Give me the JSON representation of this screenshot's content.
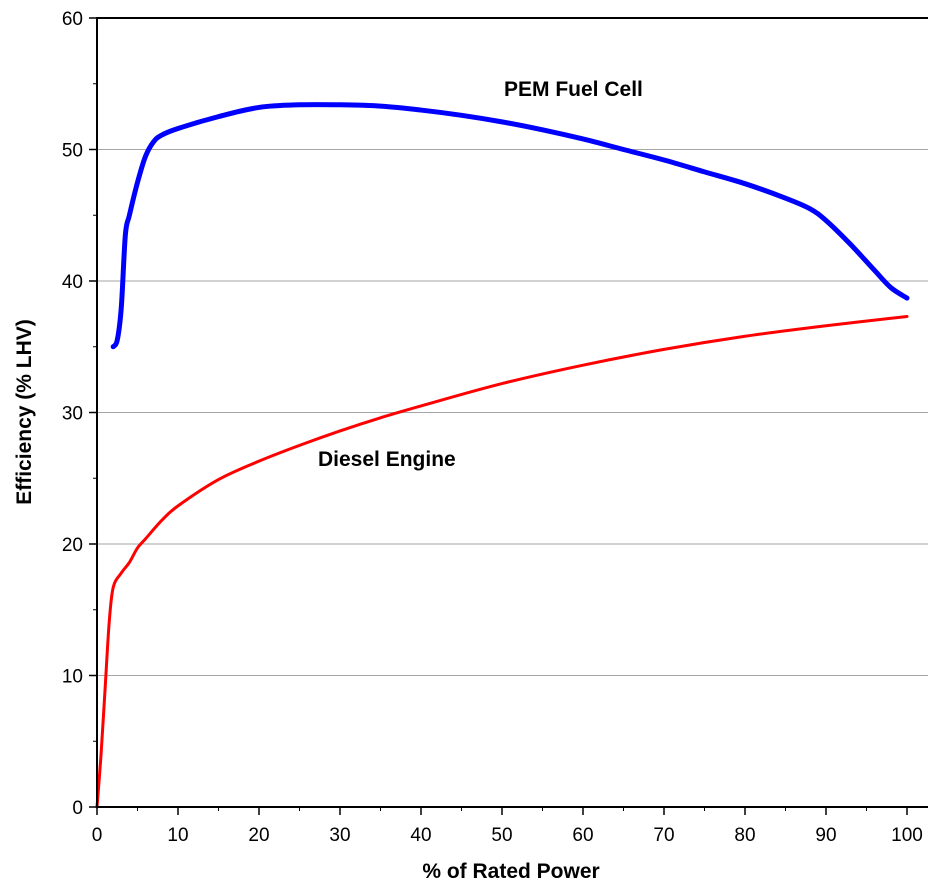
{
  "chart_data": {
    "type": "line",
    "xlabel": "% of Rated Power",
    "ylabel": "Efficiency  (% LHV)",
    "xlim": [
      0,
      100
    ],
    "ylim": [
      0,
      60
    ],
    "x_ticks": [
      0,
      10,
      20,
      30,
      40,
      50,
      60,
      70,
      80,
      90,
      100
    ],
    "y_ticks": [
      0,
      10,
      20,
      30,
      40,
      50,
      60
    ],
    "grid": "horizontal",
    "series": [
      {
        "name": "PEM Fuel Cell",
        "color": "#0000ff",
        "points": [
          [
            2,
            35
          ],
          [
            2.5,
            35.5
          ],
          [
            3,
            38
          ],
          [
            3.5,
            43.5
          ],
          [
            4,
            45
          ],
          [
            5,
            47.5
          ],
          [
            6,
            49.5
          ],
          [
            7,
            50.6
          ],
          [
            8,
            51.1
          ],
          [
            10,
            51.6
          ],
          [
            15,
            52.5
          ],
          [
            20,
            53.2
          ],
          [
            25,
            53.4
          ],
          [
            30,
            53.4
          ],
          [
            35,
            53.3
          ],
          [
            40,
            53
          ],
          [
            45,
            52.6
          ],
          [
            50,
            52.1
          ],
          [
            55,
            51.5
          ],
          [
            60,
            50.8
          ],
          [
            65,
            50
          ],
          [
            70,
            49.2
          ],
          [
            75,
            48.3
          ],
          [
            80,
            47.4
          ],
          [
            85,
            46.3
          ],
          [
            88,
            45.5
          ],
          [
            90,
            44.6
          ],
          [
            93,
            42.8
          ],
          [
            96,
            40.8
          ],
          [
            98,
            39.5
          ],
          [
            100,
            38.7
          ]
        ]
      },
      {
        "name": "Diesel Engine",
        "color": "#ff0000",
        "points": [
          [
            0,
            0
          ],
          [
            0.5,
            4
          ],
          [
            1,
            9
          ],
          [
            1.5,
            14
          ],
          [
            2,
            16.7
          ],
          [
            3,
            17.8
          ],
          [
            4,
            18.6
          ],
          [
            5,
            19.7
          ],
          [
            6,
            20.4
          ],
          [
            8,
            21.8
          ],
          [
            10,
            22.9
          ],
          [
            15,
            24.9
          ],
          [
            20,
            26.3
          ],
          [
            25,
            27.5
          ],
          [
            30,
            28.6
          ],
          [
            35,
            29.6
          ],
          [
            40,
            30.5
          ],
          [
            50,
            32.2
          ],
          [
            60,
            33.6
          ],
          [
            70,
            34.8
          ],
          [
            80,
            35.8
          ],
          [
            90,
            36.6
          ],
          [
            100,
            37.3
          ]
        ]
      }
    ],
    "colors": {
      "axis": "#000000",
      "grid": "#a6a6a6"
    }
  }
}
